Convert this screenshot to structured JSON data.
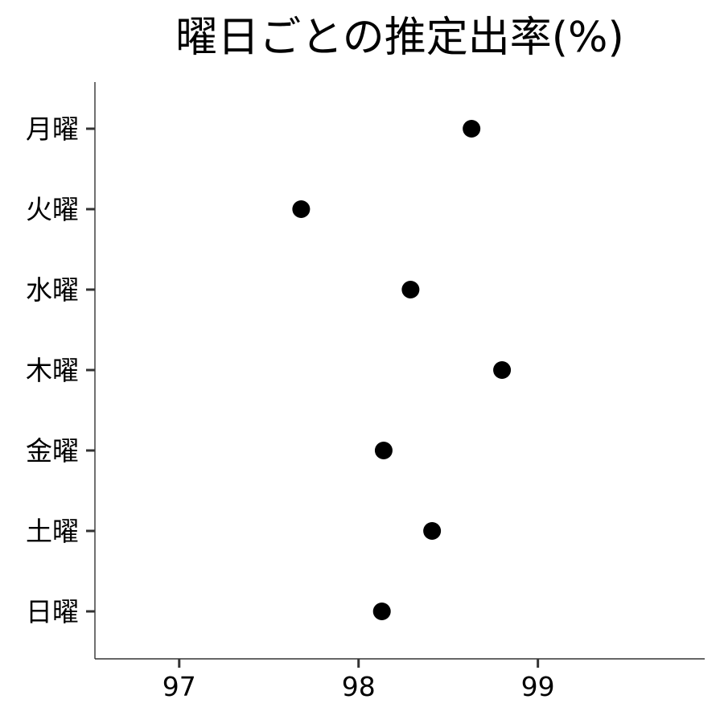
{
  "chart_data": {
    "type": "scatter",
    "title": "曜日ごとの推定出率(%)",
    "xlabel": "",
    "ylabel": "",
    "categories": [
      "月曜",
      "火曜",
      "水曜",
      "木曜",
      "金曜",
      "土曜",
      "日曜"
    ],
    "values": [
      98.63,
      97.68,
      98.29,
      98.8,
      98.14,
      98.41,
      98.13
    ],
    "xlim": [
      96.53,
      99.93
    ],
    "xticks": [
      "97",
      "98",
      "99"
    ],
    "grid": false,
    "legend": "none",
    "point_color": "#000000"
  }
}
